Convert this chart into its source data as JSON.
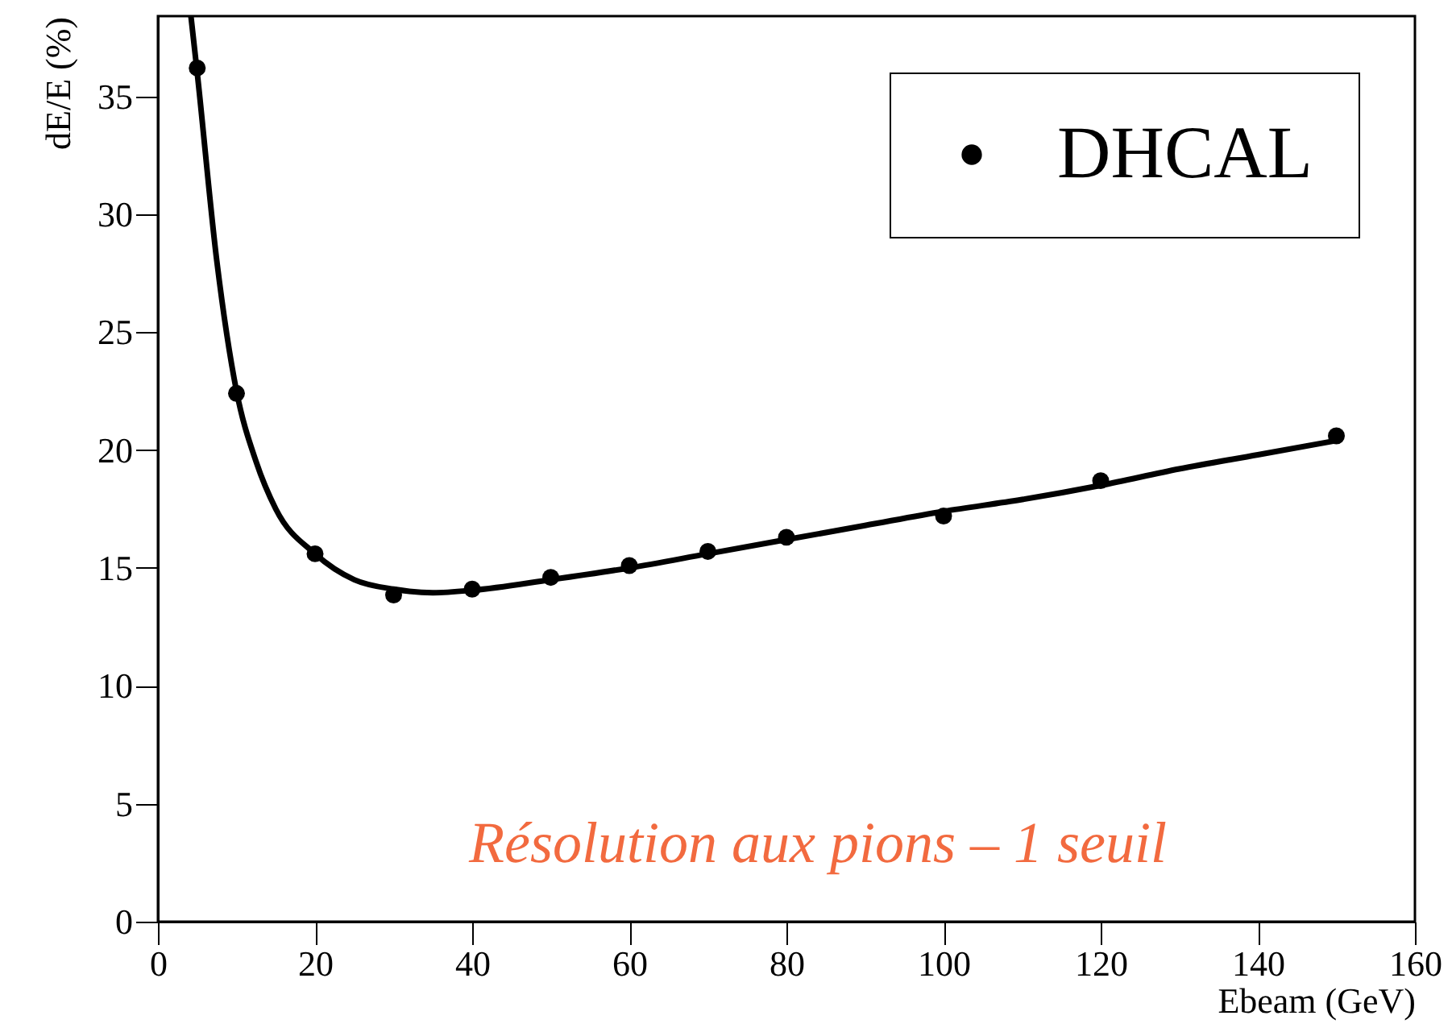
{
  "chart_data": {
    "type": "scatter",
    "xlabel": "Ebeam (GeV)",
    "ylabel": "dE/E (%)",
    "xlim": [
      0,
      160
    ],
    "ylim": [
      0,
      38.4
    ],
    "xticks": [
      0,
      20,
      40,
      60,
      80,
      100,
      120,
      140,
      160
    ],
    "yticks": [
      0,
      5,
      10,
      15,
      20,
      25,
      30,
      35
    ],
    "grid": false,
    "legend": "top right",
    "annotations": [
      "Résolution aux pions – 1 seuil"
    ],
    "series": [
      {
        "name": "DHCAL",
        "color": "#000000",
        "marker": "circle",
        "x": [
          5,
          10,
          20,
          30,
          40,
          50,
          60,
          70,
          80,
          100,
          120,
          150
        ],
        "values": [
          36.2,
          22.4,
          15.6,
          13.85,
          14.1,
          14.6,
          15.1,
          15.7,
          16.3,
          17.2,
          18.7,
          20.6
        ]
      },
      {
        "type": "line",
        "color": "#000000",
        "line_style": "solid",
        "marker": "none",
        "x": [
          4.2,
          5,
          7.5,
          10,
          12.5,
          15,
          20,
          25,
          30,
          35,
          40,
          50,
          60,
          70,
          80,
          90,
          100,
          110,
          120,
          130,
          140,
          150
        ],
        "values": [
          38.4,
          36,
          28,
          22.5,
          19.5,
          17.5,
          15.6,
          14.5,
          14.1,
          13.95,
          14.05,
          14.5,
          15.0,
          15.6,
          16.2,
          16.8,
          17.4,
          17.9,
          18.5,
          19.2,
          19.8,
          20.4
        ]
      }
    ]
  }
}
